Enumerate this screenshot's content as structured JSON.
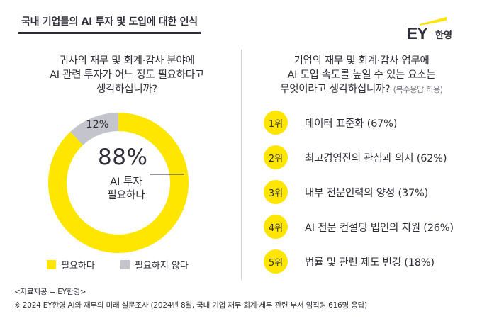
{
  "header": {
    "title": "국내 기업들의 AI 투자 및 도입에 대한 인식"
  },
  "logo": {
    "brand": "EY",
    "brand_kr": "한영"
  },
  "left_panel": {
    "question_lines": [
      "귀사의 재무 및 회계·감사 분야에",
      "AI 관련 투자가 어느 정도 필요하다고",
      "생각하십니까?"
    ]
  },
  "right_panel": {
    "question_lines": [
      "기업의 재무 및 회계·감사 업무에",
      "AI 도입 속도를 높일 수 있는 요소는",
      "무엇이라고 생각하십니까?"
    ],
    "question_note": "(복수응답 허용)"
  },
  "colors": {
    "accent": "#ffe600",
    "secondary": "#c4c4cd",
    "text": "#2e2e38"
  },
  "chart_data": [
    {
      "type": "pie",
      "style": "donut",
      "categories": [
        "필요하다",
        "필요하지 않다"
      ],
      "values": [
        88,
        12
      ],
      "value_labels": [
        "88%",
        "12%"
      ],
      "center_label_lines": [
        "AI 투자",
        "필요하다"
      ],
      "colors": [
        "#ffe600",
        "#c4c4cd"
      ],
      "legend_position": "bottom"
    },
    {
      "type": "table",
      "rows": [
        {
          "rank": "1위",
          "label": "데이터 표준화 (67%)",
          "value": 67
        },
        {
          "rank": "2위",
          "label": "최고경영진의 관심과 의지 (62%)",
          "value": 62
        },
        {
          "rank": "3위",
          "label": "내부 전문인력의 양성 (37%)",
          "value": 37
        },
        {
          "rank": "4위",
          "label": "AI 전문 컨설팅 법인의 지원 (26%)",
          "value": 26
        },
        {
          "rank": "5위",
          "label": "법률 및 관련 제도 변경 (18%)",
          "value": 18
        }
      ]
    }
  ],
  "footnotes": [
    "<자료제공 = EY한영>",
    "※ 2024 EY한영 AI와 재무의 미래 설문조사 (2024년 8월, 국내 기업 재무·회계·세무 관련 부서 임직원 616명 응답)"
  ]
}
